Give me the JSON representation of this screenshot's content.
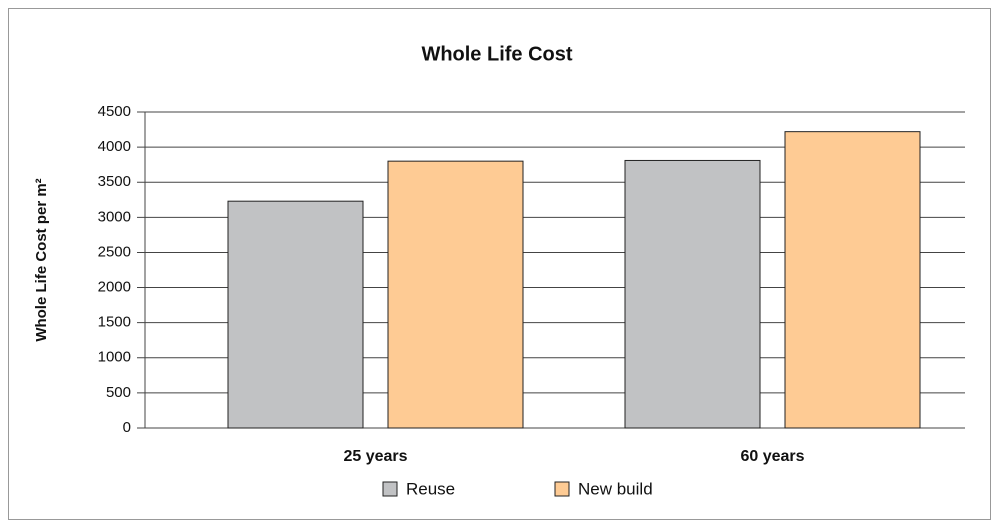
{
  "chart_data": {
    "type": "bar",
    "title": "Whole Life Cost",
    "ylabel": "Whole Life Cost per m²",
    "categories": [
      "25 years",
      "60 years"
    ],
    "series": [
      {
        "name": "Reuse",
        "color": "#c1c2c4",
        "values": [
          3230,
          3810
        ]
      },
      {
        "name": "New build",
        "color": "#fecb94",
        "values": [
          3800,
          4220
        ]
      }
    ],
    "ylim": [
      0,
      4500
    ],
    "yticks": [
      0,
      500,
      1000,
      1500,
      2000,
      2500,
      3000,
      3500,
      4000,
      4500
    ],
    "grid": true
  }
}
